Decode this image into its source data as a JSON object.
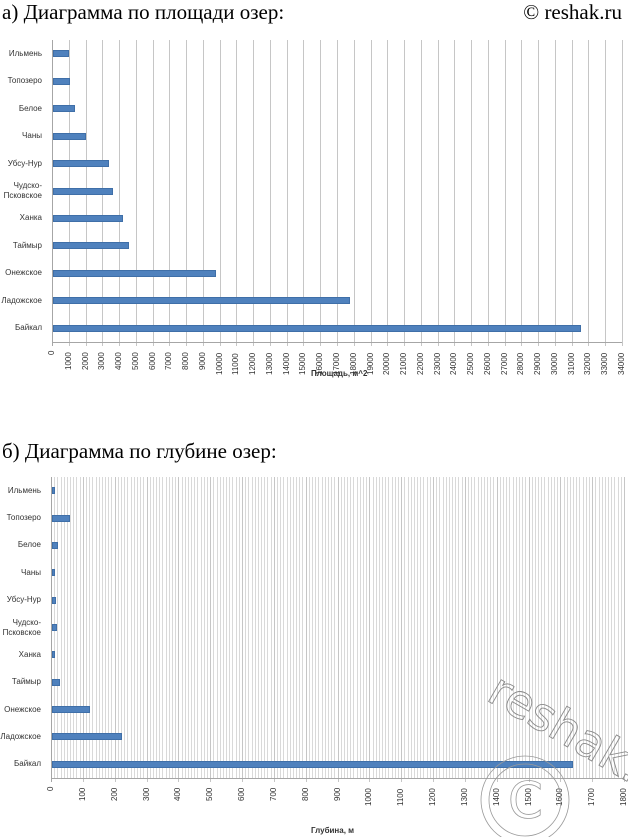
{
  "page": {
    "heading_a": "а) Диаграмма по площади озер:",
    "copyright": "© reshak.ru",
    "heading_b": "б) Диаграмма по глубине озер:",
    "watermark": "reshak.ru"
  },
  "chart_data": [
    {
      "type": "bar",
      "orientation": "horizontal",
      "title": "Диаграмма по площади озер",
      "xlabel": "Площадь, м^2",
      "ylabel": "",
      "categories": [
        "Ильмень",
        "Топозеро",
        "Белое",
        "Чаны",
        "Убсу-Нур",
        "Чудско-Псковское",
        "Ханка",
        "Таймыр",
        "Онежское",
        "Ладожское",
        "Байкал"
      ],
      "category_labels": [
        "Ильмень",
        "Топозеро",
        "Белое",
        "Чаны",
        "Убсу-Нур",
        "Чудско-\nПсковское",
        "Ханка",
        "Таймыр",
        "Онежское",
        "Ладожское",
        "Байкал"
      ],
      "values": [
        982,
        986,
        1290,
        1990,
        3350,
        3550,
        4190,
        4560,
        9720,
        17700,
        31500
      ],
      "xlim": [
        0,
        34000
      ],
      "xticks": [
        0,
        1000,
        2000,
        3000,
        4000,
        5000,
        6000,
        7000,
        8000,
        9000,
        10000,
        11000,
        12000,
        13000,
        14000,
        15000,
        16000,
        17000,
        18000,
        19000,
        20000,
        21000,
        22000,
        23000,
        24000,
        25000,
        26000,
        27000,
        28000,
        29000,
        30000,
        31000,
        32000,
        33000,
        34000
      ],
      "grid": true,
      "legend": "none",
      "bar_color": "#4f81bd"
    },
    {
      "type": "bar",
      "orientation": "horizontal",
      "title": "Диаграмма по глубине озер",
      "xlabel": "Глубина, м",
      "ylabel": "",
      "categories": [
        "Ильмень",
        "Топозеро",
        "Белое",
        "Чаны",
        "Убсу-Нур",
        "Чудско-Псковское",
        "Ханка",
        "Таймыр",
        "Онежское",
        "Ладожское",
        "Байкал"
      ],
      "category_labels": [
        "Ильмень",
        "Топозеро",
        "Белое",
        "Чаны",
        "Убсу-Нур",
        "Чудско-\nПсковское",
        "Ханка",
        "Таймыр",
        "Онежское",
        "Ладожское",
        "Байкал"
      ],
      "values": [
        10,
        56,
        20,
        10,
        12,
        15,
        10,
        26,
        120,
        220,
        1637
      ],
      "xlim": [
        0,
        1800
      ],
      "xticks": [
        0,
        100,
        200,
        300,
        400,
        500,
        600,
        700,
        800,
        900,
        1000,
        1100,
        1200,
        1300,
        1400,
        1500,
        1600,
        1700,
        1800
      ],
      "minor_grid_step": 10,
      "grid": true,
      "legend": "none",
      "bar_color": "#4f81bd"
    }
  ]
}
